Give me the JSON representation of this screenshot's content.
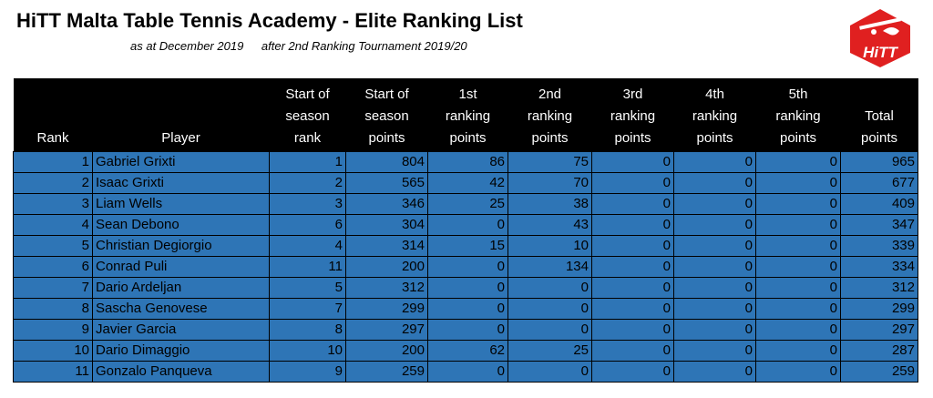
{
  "header": {
    "title": "HiTT Malta Table Tennis Academy - Elite Ranking List",
    "subtitle_date": "as at December 2019",
    "subtitle_event": "after 2nd Ranking Tournament 2019/20",
    "logo_text": "HiTT"
  },
  "colors": {
    "row_bg": "#2e75b6",
    "header_bg": "#000000",
    "logo_red": "#e02020"
  },
  "table": {
    "columns": [
      [
        "Rank"
      ],
      [
        "Player"
      ],
      [
        "Start of",
        "season",
        "rank"
      ],
      [
        "Start of",
        "season",
        "points"
      ],
      [
        "1st",
        "ranking",
        "points"
      ],
      [
        "2nd",
        "ranking",
        "points"
      ],
      [
        "3rd",
        "ranking",
        "points"
      ],
      [
        "4th",
        "ranking",
        "points"
      ],
      [
        "5th",
        "ranking",
        "points"
      ],
      [
        "Total",
        "points"
      ]
    ],
    "rows": [
      [
        "1",
        "Gabriel Grixti",
        "1",
        "804",
        "86",
        "75",
        "0",
        "0",
        "0",
        "965"
      ],
      [
        "2",
        "Isaac Grixti",
        "2",
        "565",
        "42",
        "70",
        "0",
        "0",
        "0",
        "677"
      ],
      [
        "3",
        "Liam Wells",
        "3",
        "346",
        "25",
        "38",
        "0",
        "0",
        "0",
        "409"
      ],
      [
        "4",
        "Sean Debono",
        "6",
        "304",
        "0",
        "43",
        "0",
        "0",
        "0",
        "347"
      ],
      [
        "5",
        "Christian Degiorgio",
        "4",
        "314",
        "15",
        "10",
        "0",
        "0",
        "0",
        "339"
      ],
      [
        "6",
        "Conrad Puli",
        "11",
        "200",
        "0",
        "134",
        "0",
        "0",
        "0",
        "334"
      ],
      [
        "7",
        "Dario Ardeljan",
        "5",
        "312",
        "0",
        "0",
        "0",
        "0",
        "0",
        "312"
      ],
      [
        "8",
        "Sascha Genovese",
        "7",
        "299",
        "0",
        "0",
        "0",
        "0",
        "0",
        "299"
      ],
      [
        "9",
        "Javier Garcia",
        "8",
        "297",
        "0",
        "0",
        "0",
        "0",
        "0",
        "297"
      ],
      [
        "10",
        "Dario Dimaggio",
        "10",
        "200",
        "62",
        "25",
        "0",
        "0",
        "0",
        "287"
      ],
      [
        "11",
        "Gonzalo Panqueva",
        "9",
        "259",
        "0",
        "0",
        "0",
        "0",
        "0",
        "259"
      ]
    ]
  }
}
